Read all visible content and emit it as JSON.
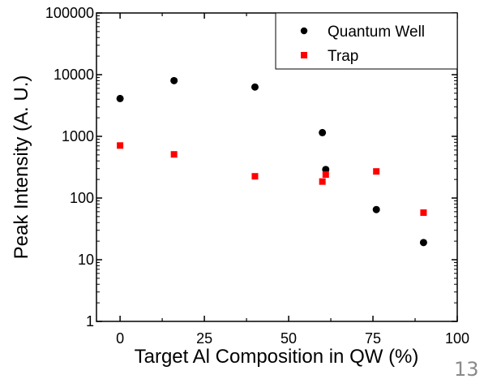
{
  "chart_data": {
    "type": "scatter",
    "title": "",
    "xlabel": "Target Al Composition in QW (%)",
    "ylabel": "Peak Intensity (A. U.)",
    "xlim": [
      -7,
      100
    ],
    "ylim": [
      1,
      100000
    ],
    "yscale": "log",
    "x_ticks": [
      0,
      25,
      50,
      75,
      100
    ],
    "x_tick_labels": [
      "0",
      "25",
      "50",
      "75",
      "100"
    ],
    "y_ticks": [
      1,
      10,
      100,
      1000,
      10000,
      100000
    ],
    "y_tick_labels": [
      "1",
      "10",
      "100",
      "1000",
      "10000",
      "100000"
    ],
    "grid": false,
    "legend_position": "top-right",
    "series": [
      {
        "name": "Quantum Well",
        "marker": "circle",
        "color": "#000000",
        "points": [
          {
            "x": 0,
            "y": 4100
          },
          {
            "x": 16,
            "y": 8000
          },
          {
            "x": 40,
            "y": 6300
          },
          {
            "x": 60,
            "y": 1150
          },
          {
            "x": 61,
            "y": 290
          },
          {
            "x": 76,
            "y": 65
          },
          {
            "x": 90,
            "y": 19
          }
        ]
      },
      {
        "name": "Trap",
        "marker": "square",
        "color": "#ff0000",
        "points": [
          {
            "x": 0,
            "y": 710
          },
          {
            "x": 16,
            "y": 510
          },
          {
            "x": 40,
            "y": 225
          },
          {
            "x": 60,
            "y": 185
          },
          {
            "x": 61,
            "y": 240
          },
          {
            "x": 76,
            "y": 270
          },
          {
            "x": 90,
            "y": 58
          }
        ]
      }
    ]
  },
  "slide_number": "13"
}
